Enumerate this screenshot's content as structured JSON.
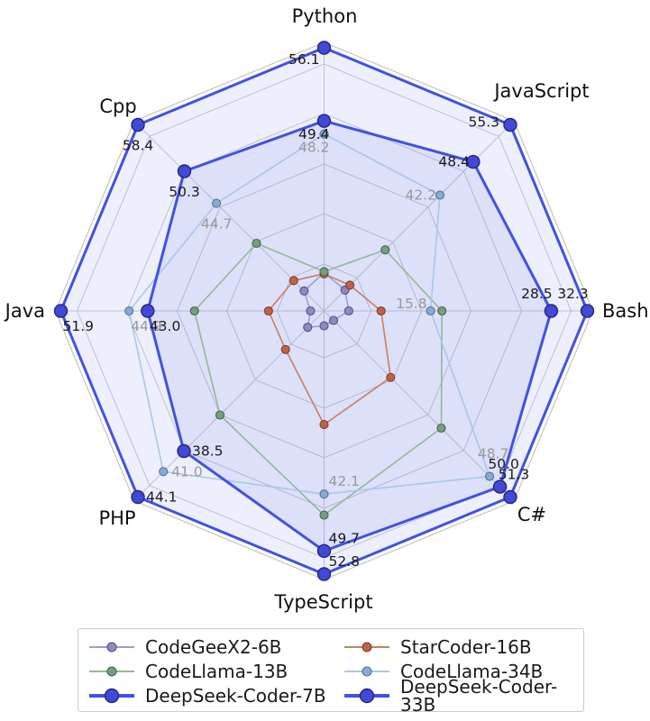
{
  "chart_data": {
    "type": "radar",
    "title": "",
    "categories": [
      "Python",
      "JavaScript",
      "Bash",
      "C#",
      "TypeScript",
      "PHP",
      "Java",
      "Cpp"
    ],
    "axis_ranges": [
      [
        32.0,
        56.1
      ],
      [
        20.6,
        55.3
      ],
      [
        4.6,
        32.3
      ],
      [
        27.8,
        51.3
      ],
      [
        17.6,
        52.8
      ],
      [
        21.4,
        44.1
      ],
      [
        24.9,
        51.9
      ],
      [
        25.9,
        58.4
      ]
    ],
    "grid_color": "#cccccc",
    "area_fill": "rgba(82,94,224,0.10)",
    "axis_label_color": "#111111",
    "legend_position": "bottom",
    "series": [
      {
        "name": "CodeGeeX2-6B",
        "line": "#a29cd0",
        "marker": "#8f88c2",
        "edge": "#56517f",
        "bold": false,
        "show_labels": false,
        "label_color": "#1a1a1a",
        "values": [
          35.5,
          24.5,
          7.2,
          29.0,
          19.6,
          23.4,
          26.3,
          29.4
        ]
      },
      {
        "name": "StarCoder-16B",
        "line": "#cb7f63",
        "marker": "#bd6347",
        "edge": "#7f3f2a",
        "bold": false,
        "show_labels": false,
        "label_color": "#1a1a1a",
        "values": [
          35.4,
          25.4,
          10.6,
          36.2,
          32.8,
          26.1,
          30.6,
          31.2
        ]
      },
      {
        "name": "CodeLlama-13B",
        "line": "#93b89b",
        "marker": "#74a07e",
        "edge": "#49654f",
        "bold": false,
        "show_labels": false,
        "label_color": "#1a1a1a",
        "values": [
          35.6,
          32.0,
          17.0,
          42.6,
          44.9,
          34.1,
          38.2,
          37.7
        ]
      },
      {
        "name": "CodeLlama-34B",
        "line": "#aac7e8",
        "marker": "#87abd4",
        "edge": "#4f7499",
        "bold": false,
        "show_labels": true,
        "label_color": "#999999",
        "values": [
          48.2,
          42.2,
          15.8,
          48.7,
          42.1,
          41.0,
          44.9,
          44.7
        ]
      },
      {
        "name": "DeepSeek-Coder-7B",
        "line": "#4450e2",
        "marker": "#4149d6",
        "edge": "#23277f",
        "bold": true,
        "show_labels": true,
        "label_color": "#1a1a1a",
        "values": [
          49.4,
          48.4,
          28.5,
          50.0,
          49.7,
          38.5,
          43.0,
          50.3
        ]
      },
      {
        "name": "DeepSeek-Coder-33B",
        "line": "#4450e2",
        "marker": "#4149d6",
        "edge": "#23277f",
        "bold": true,
        "show_labels": true,
        "label_color": "#1a1a1a",
        "values": [
          56.1,
          55.3,
          32.3,
          51.3,
          52.8,
          44.1,
          51.9,
          58.4
        ]
      }
    ]
  }
}
